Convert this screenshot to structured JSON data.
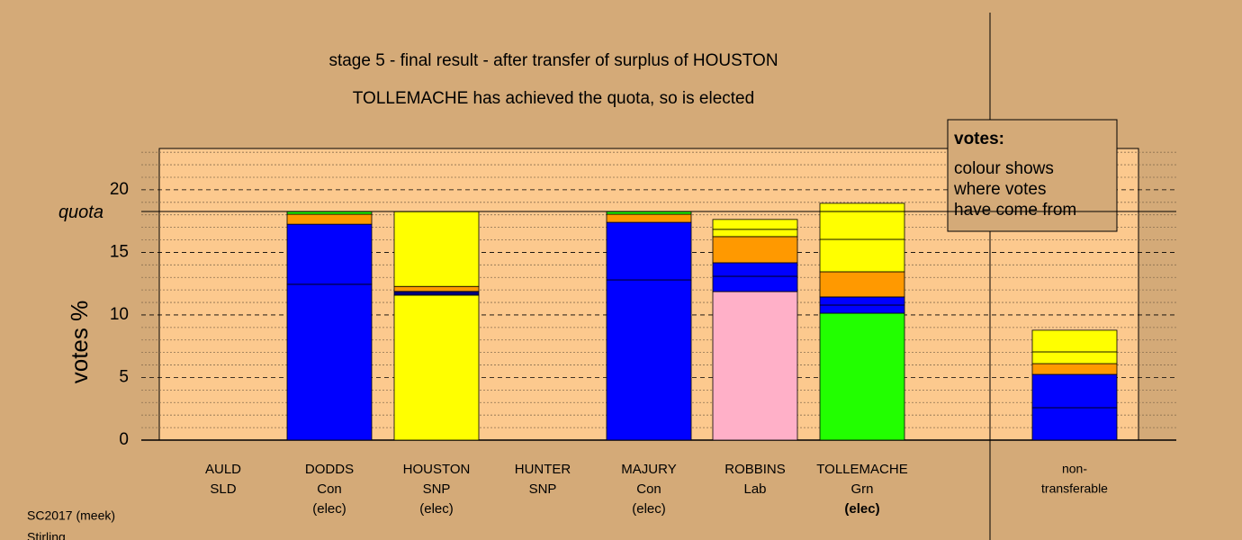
{
  "chart_data": {
    "type": "stacked-bar",
    "title": "stage 5 - final result - after transfer of surplus of HOUSTON",
    "subtitle": "TOLLEMACHE has achieved the quota, so is elected",
    "ylabel": "votes %",
    "ylim": [
      0,
      23.3
    ],
    "yticks": [
      0,
      5,
      10,
      15,
      20
    ],
    "minor_yticks": [
      1,
      2,
      3,
      4,
      6,
      7,
      8,
      9,
      11,
      12,
      13,
      14,
      16,
      17,
      18,
      19,
      21,
      22,
      23
    ],
    "quota": {
      "value": 18.27,
      "label": "quota"
    },
    "legend": {
      "title": "votes:",
      "lines": [
        "colour shows",
        "where votes",
        "have come from"
      ]
    },
    "bars": [
      {
        "lines": [
          "AULD",
          "SLD"
        ],
        "segments": []
      },
      {
        "lines": [
          "DODDS",
          "Con",
          "(elec)"
        ],
        "segments": [
          {
            "color": "#0000ff",
            "value": 12.45
          },
          {
            "color": "#0000ff",
            "value": 4.8
          },
          {
            "color": "#ff9900",
            "value": 0.8
          },
          {
            "color": "#22ff00",
            "value": 0.2
          }
        ]
      },
      {
        "lines": [
          "HOUSTON",
          "SNP",
          "(elec)"
        ],
        "segments": [
          {
            "color": "#ffff00",
            "value": 11.58
          },
          {
            "color": "#000080",
            "value": 0.3
          },
          {
            "color": "#ff9900",
            "value": 0.4
          },
          {
            "color": "#ffff00",
            "value": 5.97
          }
        ]
      },
      {
        "lines": [
          "HUNTER",
          "SNP"
        ],
        "segments": []
      },
      {
        "lines": [
          "MAJURY",
          "Con",
          "(elec)"
        ],
        "segments": [
          {
            "color": "#0000ff",
            "value": 12.8
          },
          {
            "color": "#0000ff",
            "value": 4.6
          },
          {
            "color": "#ff9900",
            "value": 0.65
          },
          {
            "color": "#22ff00",
            "value": 0.2
          }
        ]
      },
      {
        "lines": [
          "ROBBINS",
          "Lab"
        ],
        "segments": [
          {
            "color": "#ffb0c8",
            "value": 11.87
          },
          {
            "color": "#0000ff",
            "value": 1.22
          },
          {
            "color": "#0000ff",
            "value": 1.08
          },
          {
            "color": "#ff9900",
            "value": 2.09
          },
          {
            "color": "#ffff00",
            "value": 0.58
          },
          {
            "color": "#ffff00",
            "value": 0.79
          }
        ]
      },
      {
        "lines": [
          "TOLLEMACHE",
          "Grn",
          "(elec)"
        ],
        "bold_last": true,
        "segments": [
          {
            "color": "#22ff00",
            "value": 10.14
          },
          {
            "color": "#0000ff",
            "value": 0.65
          },
          {
            "color": "#0000ff",
            "value": 0.65
          },
          {
            "color": "#ff9900",
            "value": 2.01
          },
          {
            "color": "#ffff00",
            "value": 2.59
          },
          {
            "color": "#ffff00",
            "value": 2.88
          }
        ]
      },
      {
        "lines": [
          "non-",
          "transferable"
        ],
        "separate": true,
        "segments": [
          {
            "color": "#0000ff",
            "value": 2.59
          },
          {
            "color": "#0000ff",
            "value": 2.66
          },
          {
            "color": "#ff9900",
            "value": 0.86
          },
          {
            "color": "#ffff00",
            "value": 0.94
          },
          {
            "color": "#ffff00",
            "value": 1.73
          }
        ]
      }
    ],
    "footer": [
      "SC2017 (meek)",
      "Stirling"
    ]
  }
}
